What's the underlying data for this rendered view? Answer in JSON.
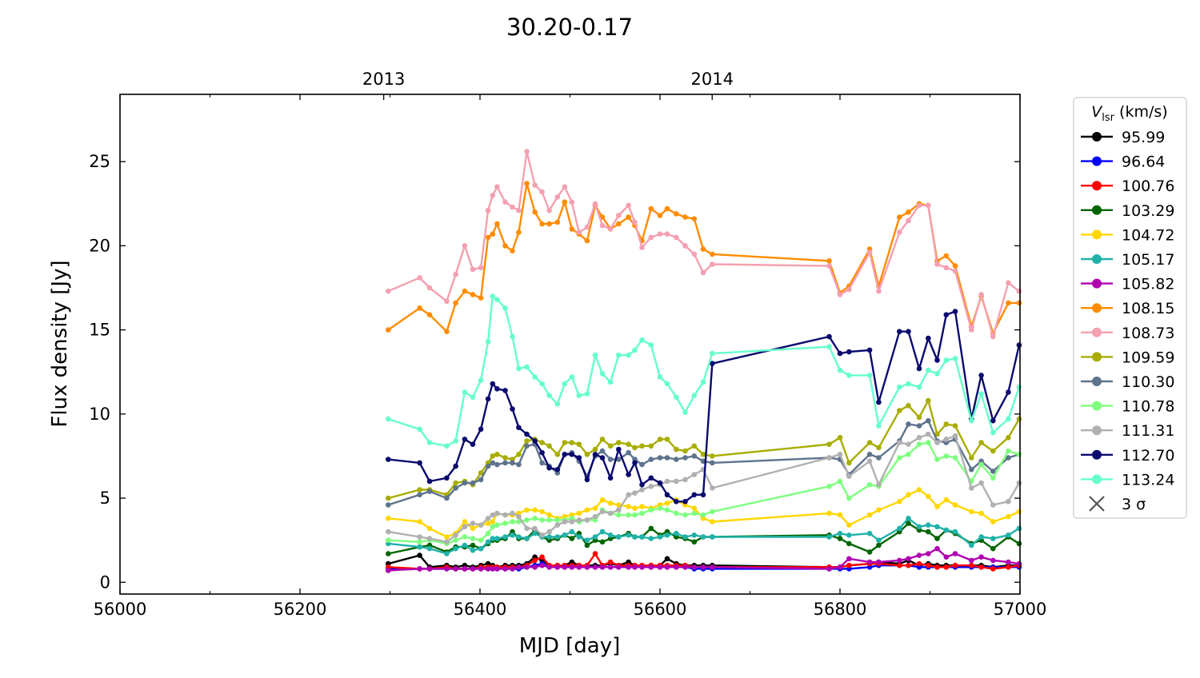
{
  "chart_data": {
    "type": "line",
    "title": "30.20-0.17",
    "xlabel": "MJD [day]",
    "ylabel": "Flux density [Jy]",
    "xlim": [
      56000,
      57000
    ],
    "ylim": [
      -0.7,
      29.0
    ],
    "x_ticks": [
      56000,
      56200,
      56400,
      56600,
      56800,
      57000
    ],
    "y_ticks": [
      0,
      5,
      10,
      15,
      20,
      25
    ],
    "top_axis": {
      "labels": [
        {
          "text": "2013",
          "mjd": 56293
        },
        {
          "text": "2014",
          "mjd": 56658
        }
      ]
    },
    "grid": false,
    "legend": {
      "title": "V_lsr (km/s)",
      "placement": "right outside",
      "upper_limit_label": "3 σ"
    },
    "x": [
      56298,
      56333,
      56344,
      56363,
      56373,
      56383,
      56392,
      56401,
      56409,
      56414,
      56419,
      56428,
      56436,
      56443,
      56452,
      56461,
      56469,
      56477,
      56486,
      56494,
      56502,
      56510,
      56519,
      56528,
      56536,
      56545,
      56554,
      56565,
      56572,
      56580,
      56590,
      56600,
      56608,
      56618,
      56628,
      56638,
      56648,
      56658,
      56788,
      56800,
      56810,
      56833,
      56843,
      56866,
      56876,
      56888,
      56898,
      56908,
      56918,
      56928,
      56946,
      56957,
      56970,
      56987,
      56999
    ],
    "series": [
      {
        "name": "95.99",
        "color": "#000000",
        "values": [
          1.1,
          1.6,
          0.9,
          1.0,
          0.9,
          1.0,
          0.9,
          1.0,
          1.1,
          1.0,
          0.9,
          1.0,
          1.0,
          1.0,
          1.1,
          1.5,
          1.3,
          1.0,
          1.0,
          1.0,
          1.2,
          1.0,
          1.0,
          1.0,
          1.0,
          1.1,
          1.0,
          1.2,
          1.0,
          1.0,
          1.0,
          1.0,
          1.4,
          1.1,
          1.0,
          1.0,
          1.0,
          1.0,
          0.9,
          0.9,
          1.0,
          1.1,
          1.2,
          1.1,
          1.3,
          1.0,
          1.1,
          1.0,
          1.0,
          1.0,
          1.0,
          1.0,
          0.9,
          1.0,
          1.0
        ]
      },
      {
        "name": "96.64",
        "color": "#0000ff",
        "values": [
          0.8,
          0.8,
          0.8,
          0.8,
          0.8,
          0.8,
          0.8,
          0.8,
          0.8,
          0.8,
          0.8,
          0.8,
          0.8,
          0.8,
          0.9,
          1.0,
          1.1,
          0.9,
          0.9,
          0.9,
          0.9,
          0.9,
          0.9,
          0.9,
          0.9,
          0.9,
          0.9,
          0.9,
          0.9,
          0.9,
          0.9,
          0.9,
          0.9,
          0.9,
          0.9,
          0.8,
          0.8,
          0.8,
          0.8,
          0.8,
          0.8,
          0.9,
          1.0,
          1.0,
          1.0,
          0.9,
          0.9,
          0.9,
          0.9,
          0.9,
          0.9,
          0.9,
          0.9,
          0.9,
          0.9
        ]
      },
      {
        "name": "100.76",
        "color": "#ff0000",
        "values": [
          0.9,
          0.8,
          0.8,
          0.9,
          0.8,
          0.8,
          0.8,
          0.9,
          0.9,
          0.9,
          0.9,
          0.9,
          0.9,
          0.9,
          1.0,
          1.3,
          1.5,
          1.0,
          1.0,
          1.0,
          1.0,
          1.0,
          1.0,
          1.7,
          1.0,
          1.2,
          1.0,
          1.0,
          1.0,
          1.0,
          1.0,
          1.0,
          1.0,
          1.0,
          1.0,
          0.9,
          0.9,
          0.9,
          0.9,
          0.9,
          1.0,
          1.1,
          1.1,
          1.0,
          1.0,
          1.1,
          1.0,
          0.9,
          0.9,
          1.0,
          1.0,
          0.9,
          0.8,
          0.9,
          1.0
        ]
      },
      {
        "name": "103.29",
        "color": "#006400",
        "values": [
          1.7,
          2.1,
          2.2,
          1.8,
          2.1,
          2.1,
          2.2,
          2.0,
          2.3,
          2.5,
          2.5,
          2.6,
          3.0,
          2.6,
          2.6,
          3.1,
          2.7,
          2.5,
          2.6,
          2.8,
          2.6,
          2.9,
          2.2,
          2.5,
          2.4,
          2.6,
          2.7,
          2.9,
          2.7,
          2.7,
          3.2,
          2.8,
          3.0,
          2.7,
          2.6,
          2.4,
          2.7,
          2.7,
          2.8,
          2.6,
          2.3,
          1.8,
          2.2,
          3.0,
          3.5,
          3.1,
          3.0,
          2.6,
          3.1,
          2.9,
          2.3,
          2.5,
          2.0,
          2.7,
          2.3
        ]
      },
      {
        "name": "104.72",
        "color": "#ffd700",
        "values": [
          3.8,
          3.6,
          3.2,
          2.7,
          2.9,
          3.6,
          3.2,
          3.4,
          3.5,
          3.6,
          4.1,
          4.0,
          4.0,
          4.1,
          4.3,
          4.3,
          4.2,
          4.0,
          3.8,
          3.9,
          4.0,
          4.1,
          4.3,
          4.4,
          4.9,
          4.7,
          4.6,
          4.5,
          4.4,
          4.5,
          4.4,
          4.6,
          4.7,
          4.9,
          4.6,
          4.4,
          3.8,
          3.6,
          4.1,
          4.0,
          3.4,
          4.0,
          4.3,
          4.8,
          5.2,
          5.5,
          5.1,
          4.5,
          4.9,
          4.6,
          4.2,
          4.1,
          3.6,
          3.9,
          4.2
        ]
      },
      {
        "name": "105.17",
        "color": "#20b2aa",
        "values": [
          2.3,
          2.1,
          2.0,
          1.7,
          2.0,
          2.2,
          1.9,
          2.0,
          2.4,
          2.6,
          2.6,
          2.7,
          2.8,
          2.7,
          2.6,
          2.9,
          2.7,
          2.7,
          2.7,
          2.8,
          3.0,
          2.7,
          2.5,
          2.7,
          3.0,
          2.8,
          2.7,
          2.8,
          2.7,
          2.7,
          2.6,
          2.7,
          2.8,
          2.9,
          2.7,
          2.8,
          2.7,
          2.7,
          2.7,
          2.9,
          2.8,
          2.9,
          2.5,
          3.2,
          3.8,
          3.3,
          3.4,
          3.3,
          3.1,
          3.0,
          2.2,
          2.7,
          2.6,
          2.8,
          3.2
        ]
      },
      {
        "name": "105.82",
        "color": "#b000b0",
        "values": [
          0.7,
          0.8,
          0.8,
          0.8,
          0.8,
          0.8,
          0.8,
          0.8,
          0.8,
          0.8,
          0.8,
          0.8,
          0.8,
          0.9,
          0.9,
          0.9,
          1.0,
          0.9,
          0.9,
          0.9,
          0.9,
          0.9,
          0.9,
          0.9,
          0.9,
          0.9,
          0.9,
          0.9,
          0.9,
          0.9,
          0.9,
          0.9,
          0.9,
          0.9,
          0.9,
          0.9,
          0.9,
          0.9,
          0.8,
          0.9,
          1.4,
          1.2,
          1.2,
          1.3,
          1.4,
          1.6,
          1.7,
          2.0,
          1.5,
          1.7,
          1.3,
          1.5,
          1.3,
          1.2,
          1.1
        ]
      },
      {
        "name": "108.15",
        "color": "#ff8c00",
        "values": [
          15.0,
          16.3,
          15.9,
          14.9,
          16.6,
          17.3,
          17.1,
          16.9,
          20.5,
          20.7,
          21.3,
          20.0,
          19.7,
          20.8,
          23.7,
          22.0,
          21.3,
          21.3,
          21.4,
          22.6,
          21.0,
          20.7,
          20.3,
          22.4,
          21.7,
          21.0,
          21.3,
          21.7,
          21.2,
          20.3,
          22.2,
          21.8,
          22.2,
          21.9,
          21.7,
          21.6,
          19.8,
          19.5,
          19.1,
          17.2,
          17.6,
          19.8,
          17.6,
          21.7,
          22.0,
          22.5,
          22.4,
          19.1,
          19.4,
          18.8,
          15.2,
          17.0,
          14.8,
          16.6,
          16.6
        ]
      },
      {
        "name": "108.73",
        "color": "#f4a0b0",
        "values": [
          17.3,
          18.1,
          17.5,
          16.7,
          18.3,
          20.0,
          18.6,
          18.7,
          22.1,
          23.0,
          23.5,
          22.6,
          22.3,
          22.1,
          25.6,
          23.6,
          23.2,
          22.1,
          22.9,
          23.5,
          22.6,
          20.8,
          21.1,
          22.5,
          21.2,
          21.0,
          21.8,
          22.4,
          21.4,
          19.9,
          20.5,
          20.7,
          20.7,
          20.5,
          20.0,
          19.5,
          18.4,
          18.9,
          18.8,
          17.1,
          17.4,
          19.6,
          17.3,
          20.8,
          21.5,
          22.4,
          22.4,
          18.9,
          18.7,
          18.5,
          15.0,
          17.1,
          14.6,
          17.8,
          17.3
        ]
      },
      {
        "name": "109.59",
        "color": "#a8ad00",
        "values": [
          5.0,
          5.5,
          5.5,
          5.2,
          5.9,
          6.0,
          5.8,
          6.5,
          7.1,
          7.5,
          7.6,
          7.4,
          7.3,
          7.6,
          8.4,
          8.5,
          8.3,
          8.1,
          7.6,
          8.3,
          8.3,
          8.2,
          7.6,
          7.9,
          8.5,
          8.1,
          8.3,
          8.2,
          8.0,
          8.1,
          8.1,
          8.5,
          8.5,
          7.9,
          7.8,
          8.1,
          7.6,
          7.5,
          8.2,
          8.6,
          7.1,
          8.3,
          8.0,
          10.2,
          10.5,
          9.8,
          10.8,
          8.8,
          9.4,
          9.3,
          7.4,
          8.3,
          7.8,
          8.6,
          9.7
        ]
      },
      {
        "name": "110.30",
        "color": "#5e738c",
        "values": [
          4.6,
          5.2,
          5.4,
          5.0,
          5.6,
          5.9,
          5.9,
          6.1,
          6.9,
          7.1,
          7.0,
          7.1,
          7.1,
          7.0,
          8.1,
          8.2,
          7.1,
          6.9,
          6.5,
          7.6,
          7.7,
          7.2,
          6.3,
          7.5,
          7.8,
          7.3,
          7.3,
          7.7,
          7.3,
          7.0,
          7.3,
          7.4,
          7.4,
          7.3,
          7.4,
          7.5,
          7.2,
          7.1,
          7.4,
          7.3,
          6.4,
          7.6,
          7.4,
          8.4,
          9.4,
          9.3,
          9.6,
          8.4,
          8.3,
          8.5,
          6.7,
          7.2,
          6.6,
          7.4,
          7.6
        ]
      },
      {
        "name": "110.78",
        "color": "#7fff7f",
        "values": [
          2.5,
          2.4,
          2.5,
          2.3,
          2.5,
          2.7,
          2.6,
          2.5,
          2.9,
          3.3,
          3.4,
          3.5,
          3.6,
          3.6,
          3.7,
          3.8,
          3.7,
          3.7,
          3.7,
          3.7,
          3.8,
          3.6,
          3.7,
          3.7,
          4.3,
          4.1,
          4.0,
          4.0,
          4.0,
          4.1,
          4.3,
          4.4,
          4.3,
          4.1,
          4.0,
          4.1,
          4.0,
          4.2,
          5.7,
          6.0,
          5.0,
          5.8,
          5.7,
          7.4,
          7.6,
          8.2,
          8.3,
          7.3,
          7.5,
          7.4,
          6.0,
          7.0,
          6.2,
          7.8,
          7.6
        ]
      },
      {
        "name": "111.31",
        "color": "#b0b0b0",
        "values": [
          3.0,
          2.7,
          2.6,
          2.4,
          2.8,
          3.3,
          3.5,
          3.4,
          3.8,
          4.0,
          4.1,
          4.0,
          4.1,
          3.9,
          3.2,
          3.2,
          2.8,
          3.0,
          3.4,
          3.6,
          3.6,
          3.7,
          3.7,
          3.9,
          4.2,
          4.1,
          4.3,
          5.2,
          5.3,
          5.5,
          5.7,
          5.8,
          6.0,
          6.0,
          6.1,
          6.4,
          6.7,
          5.6,
          7.4,
          7.6,
          6.3,
          7.2,
          5.8,
          8.3,
          8.2,
          8.6,
          8.8,
          8.3,
          8.5,
          8.7,
          5.6,
          5.9,
          4.6,
          4.8,
          5.9
        ]
      },
      {
        "name": "112.70",
        "color": "#0a0a6e",
        "values": [
          7.3,
          7.1,
          6.0,
          6.2,
          6.9,
          8.5,
          8.2,
          9.1,
          10.9,
          11.8,
          11.5,
          11.4,
          10.3,
          9.2,
          8.8,
          8.4,
          7.7,
          6.8,
          6.7,
          7.6,
          7.6,
          7.4,
          6.1,
          7.6,
          7.4,
          6.2,
          7.9,
          6.4,
          7.1,
          5.8,
          6.2,
          5.9,
          5.2,
          4.8,
          4.8,
          5.2,
          5.2,
          13.0,
          14.6,
          13.6,
          13.7,
          13.8,
          10.7,
          14.9,
          14.9,
          12.7,
          14.5,
          13.2,
          15.9,
          16.1,
          9.7,
          12.3,
          9.6,
          11.3,
          14.1
        ]
      },
      {
        "name": "113.24",
        "color": "#66ffcc",
        "values": [
          9.7,
          9.1,
          8.3,
          8.1,
          8.4,
          11.3,
          11.0,
          12.0,
          14.3,
          17.0,
          16.8,
          16.3,
          14.6,
          12.7,
          12.8,
          12.2,
          11.8,
          11.1,
          10.6,
          11.8,
          12.2,
          11.1,
          11.2,
          13.5,
          12.4,
          11.9,
          13.5,
          13.5,
          13.8,
          14.4,
          14.1,
          12.2,
          11.8,
          11.0,
          10.1,
          11.1,
          11.9,
          13.6,
          14.0,
          12.6,
          12.3,
          12.3,
          9.3,
          11.6,
          11.8,
          11.6,
          12.6,
          12.4,
          13.2,
          13.3,
          9.6,
          11.2,
          8.9,
          9.7,
          11.6
        ]
      }
    ]
  }
}
